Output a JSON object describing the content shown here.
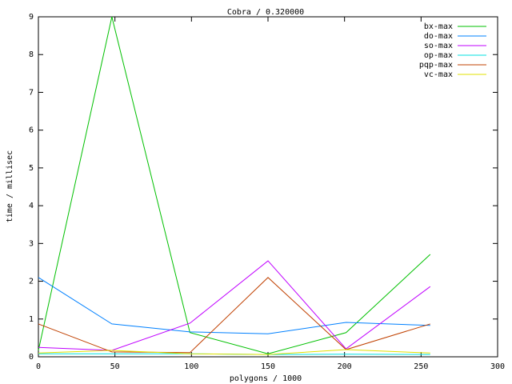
{
  "chart_data": {
    "type": "line",
    "title": "Cobra / 0.320000",
    "x_label": "polygons / 1000",
    "y_label": "time / millisec",
    "x": [
      0,
      48,
      99,
      150,
      201,
      256
    ],
    "series": [
      {
        "name": "bx-max",
        "color": "#00c000",
        "values": [
          0.17,
          9.0,
          0.64,
          0.08,
          0.64,
          2.71
        ]
      },
      {
        "name": "do-max",
        "color": "#0080ff",
        "values": [
          2.1,
          0.87,
          0.66,
          0.61,
          0.91,
          0.83
        ]
      },
      {
        "name": "so-max",
        "color": "#c000ff",
        "values": [
          0.25,
          0.17,
          0.89,
          2.54,
          0.21,
          1.86
        ]
      },
      {
        "name": "op-max",
        "color": "#00e0e0",
        "values": [
          0.08,
          0.08,
          0.08,
          0.06,
          0.07,
          0.06
        ]
      },
      {
        "name": "pqp-max",
        "color": "#c04000",
        "values": [
          0.87,
          0.13,
          0.11,
          2.1,
          0.19,
          0.87
        ]
      },
      {
        "name": "vc-max",
        "color": "#e0e000",
        "values": [
          0.1,
          0.17,
          0.08,
          0.06,
          0.19,
          0.1
        ]
      }
    ],
    "xlim": [
      0,
      300
    ],
    "xticks": [
      0,
      50,
      100,
      150,
      200,
      250,
      300
    ],
    "ylim": [
      0,
      9
    ],
    "yticks": [
      0,
      1,
      2,
      3,
      4,
      5,
      6,
      7,
      8,
      9
    ],
    "legend": "top-right"
  }
}
